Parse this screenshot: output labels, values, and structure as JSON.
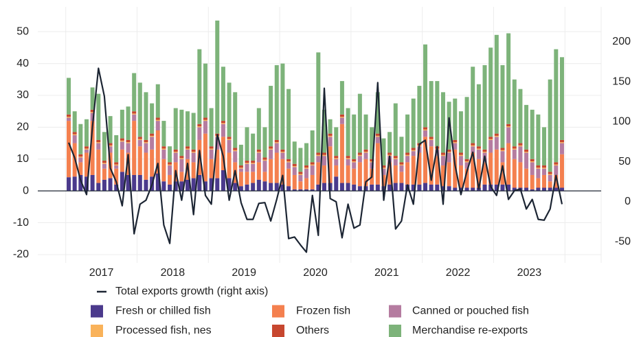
{
  "chart_data": {
    "type": "bar",
    "stacked": true,
    "categories": [
      null,
      null,
      null,
      null,
      null,
      null,
      "2017",
      null,
      null,
      null,
      null,
      null,
      null,
      null,
      null,
      null,
      null,
      null,
      "2018",
      null,
      null,
      null,
      null,
      null,
      null,
      null,
      null,
      null,
      null,
      null,
      "2019",
      null,
      null,
      null,
      null,
      null,
      null,
      null,
      null,
      null,
      null,
      null,
      "2020",
      null,
      null,
      null,
      null,
      null,
      null,
      null,
      null,
      null,
      null,
      null,
      "2021",
      null,
      null,
      null,
      null,
      null,
      null,
      null,
      null,
      null,
      null,
      null,
      "2022",
      null,
      null,
      null,
      null,
      null,
      null,
      null,
      null,
      null,
      null,
      null,
      "2023",
      null,
      null,
      null,
      null,
      null
    ],
    "series": [
      {
        "name": "Fresh or chilled fish",
        "color": "#4b3a8c",
        "values": [
          4.3,
          4.5,
          5,
          4.5,
          5,
          2.5,
          3.5,
          4,
          2,
          6,
          5,
          5,
          5,
          3.5,
          4.5,
          5.5,
          3,
          2,
          3,
          3,
          3.5,
          4,
          5,
          3,
          4,
          4,
          6.5,
          4,
          2.5,
          1.5,
          2,
          2.5,
          3.5,
          3,
          2.5,
          2.5,
          2,
          1.5,
          0.5,
          0.5,
          0.5,
          0.5,
          2,
          2.5,
          2.5,
          4.5,
          2.5,
          2.5,
          2,
          1.5,
          1.5,
          2,
          2,
          1.5,
          2,
          2.5,
          2.5,
          2,
          2,
          2,
          2.5,
          2,
          2,
          1.5,
          1.5,
          1,
          1,
          1,
          1,
          1,
          2,
          2,
          2,
          2,
          2,
          1,
          1,
          1,
          0.5,
          1,
          1,
          1,
          1,
          1
        ]
      },
      {
        "name": "Frozen fish",
        "color": "#f4804f",
        "values": [
          17.7,
          10.5,
          4,
          7.5,
          17,
          10.5,
          3.5,
          8,
          5,
          7,
          7,
          17,
          9,
          8.5,
          8.5,
          13.5,
          7,
          3,
          6,
          3,
          6.5,
          5,
          11,
          15,
          6,
          9,
          10.5,
          8,
          6.5,
          4.5,
          4,
          3.5,
          5.5,
          3,
          7.5,
          9.5,
          8,
          5.5,
          4.5,
          2.5,
          3.5,
          4.5,
          7,
          5.5,
          11.5,
          3.5,
          18.5,
          5.5,
          5,
          7.5,
          8.5,
          5,
          13,
          3.5,
          7,
          5.5,
          3.5,
          7,
          9,
          10,
          14.5,
          12,
          9,
          6.5,
          7.5,
          12,
          7,
          6,
          11,
          9,
          7,
          10,
          11,
          7,
          13,
          9,
          8,
          6,
          4.5,
          3,
          4,
          2,
          4,
          10.5
        ]
      },
      {
        "name": "Canned or pouched fish",
        "color": "#b57ca0",
        "values": [
          1,
          2.5,
          1.5,
          1,
          2.5,
          2,
          1.5,
          2,
          1,
          2.5,
          3,
          2,
          2,
          3,
          4,
          3,
          3,
          3,
          3,
          4,
          3,
          3,
          4,
          4,
          3,
          4,
          4,
          4,
          3.5,
          1,
          2.5,
          2.5,
          3,
          3.5,
          3,
          3,
          2,
          2,
          2.5,
          2,
          3,
          3,
          2,
          3,
          3,
          2,
          2,
          2,
          2,
          2,
          2,
          2,
          2,
          2,
          2,
          2,
          2,
          2,
          1.5,
          2,
          2,
          2,
          2,
          3,
          3,
          2,
          3,
          2,
          2,
          3,
          3,
          4,
          4,
          3.5,
          5,
          3,
          5,
          5,
          4,
          3,
          2,
          2,
          3,
          3.5
        ]
      },
      {
        "name": "Processed fish, nes",
        "color": "#f9b25a",
        "values": [
          0.3,
          0.3,
          0.3,
          0.3,
          0.3,
          0.3,
          0.3,
          0.3,
          0.3,
          0.3,
          0.3,
          0.3,
          0.3,
          0.3,
          0.3,
          0.3,
          0.3,
          0.3,
          0.3,
          0.3,
          0.3,
          0.3,
          0.3,
          0.3,
          0.3,
          0.3,
          0.3,
          0.3,
          0.3,
          0.3,
          0.3,
          0.3,
          0.3,
          0.3,
          0.3,
          0.3,
          0.3,
          0.3,
          0.3,
          0.3,
          0.3,
          0.3,
          0.3,
          0.3,
          0.3,
          0.3,
          0.3,
          0.3,
          0.3,
          0.3,
          0.3,
          0.3,
          0.3,
          0.3,
          0.3,
          0.3,
          0.3,
          0.3,
          0.3,
          0.3,
          0.3,
          0.3,
          0.3,
          0.3,
          0.3,
          0.3,
          0.3,
          0.3,
          0.3,
          0.3,
          0.3,
          0.3,
          0.3,
          0.3,
          0.3,
          0.3,
          0.3,
          0.3,
          0.3,
          0.3,
          0.3,
          0.3,
          0.3,
          0.3
        ]
      },
      {
        "name": "Others",
        "color": "#c7472f",
        "values": [
          0.7,
          0.7,
          0.7,
          0.7,
          0.7,
          0.7,
          0.7,
          0.7,
          0.7,
          0.7,
          0.7,
          0.7,
          0.7,
          0.7,
          0.7,
          0.7,
          0.7,
          0.7,
          0.7,
          0.7,
          0.7,
          0.7,
          0.7,
          0.7,
          0.7,
          0.7,
          0.7,
          0.7,
          0.7,
          0.7,
          0.7,
          0.7,
          0.7,
          0.7,
          0.7,
          0.7,
          0.7,
          0.7,
          0.7,
          0.7,
          0.7,
          0.7,
          0.7,
          0.7,
          0.7,
          0.7,
          0.7,
          0.7,
          0.7,
          0.7,
          0.7,
          0.7,
          0.7,
          0.7,
          0.7,
          0.7,
          0.7,
          0.7,
          0.7,
          0.7,
          0.7,
          0.7,
          0.7,
          0.7,
          0.7,
          0.7,
          0.7,
          0.7,
          0.7,
          0.7,
          0.7,
          0.7,
          0.7,
          0.7,
          0.7,
          0.7,
          0.7,
          0.7,
          0.7,
          0.7,
          0.7,
          0.7,
          0.7,
          0.7
        ]
      },
      {
        "name": "Merchandise re-exports",
        "color": "#7db37a",
        "values": [
          11.5,
          6.5,
          9.5,
          8.5,
          7,
          14.5,
          9,
          8.5,
          8.5,
          9,
          10.5,
          12,
          17,
          15,
          9.5,
          10.5,
          8,
          5,
          13,
          14.5,
          11,
          11.5,
          23.5,
          17,
          12,
          35.5,
          17,
          17,
          17.5,
          6.5,
          10.5,
          8.5,
          13,
          9.5,
          19,
          23.5,
          27,
          22,
          7,
          7.5,
          7,
          10,
          31.5,
          13.5,
          4.5,
          9,
          10.5,
          15,
          14,
          18.5,
          11,
          10,
          13,
          8.5,
          6.5,
          16.5,
          8,
          12,
          15.5,
          18,
          26,
          17.5,
          20.5,
          19,
          15,
          13,
          13,
          19.5,
          24,
          19.5,
          26.5,
          28,
          31,
          26,
          28.5,
          21,
          17,
          14,
          15.5,
          16,
          12,
          29,
          35.5,
          26
        ]
      },
      {
        "name": "Total exports growth (right axis)",
        "type": "line",
        "axis": "y2",
        "color": "#1c2533",
        "values": [
          74,
          55,
          27,
          9,
          94,
          167,
          132,
          42,
          25,
          -5,
          59,
          -40,
          -3,
          2,
          21,
          48,
          -29,
          -52,
          39,
          2,
          48,
          -16,
          64,
          8,
          -3,
          84,
          57,
          2,
          39,
          -1,
          -22,
          -22,
          -2,
          -1,
          -24,
          3,
          33,
          -46,
          -44,
          -54,
          -63,
          8,
          -42,
          142,
          4,
          0,
          -45,
          -3,
          -33,
          -29,
          25,
          31,
          149,
          2,
          57,
          -34,
          -24,
          21,
          -3,
          72,
          77,
          27,
          69,
          -3,
          105,
          46,
          9,
          38,
          62,
          16,
          57,
          19,
          8,
          45,
          3,
          14,
          16,
          -9,
          3,
          -22,
          -23,
          -9,
          33,
          -3
        ]
      }
    ],
    "ylim": [
      -22.6,
      57.8
    ],
    "yticks": [
      -20,
      -10,
      0,
      10,
      20,
      30,
      40,
      50
    ],
    "y2lim": [
      -76.4,
      243.8
    ],
    "y2ticks": [
      -50,
      0,
      50,
      100,
      150,
      200
    ],
    "grid": true
  }
}
